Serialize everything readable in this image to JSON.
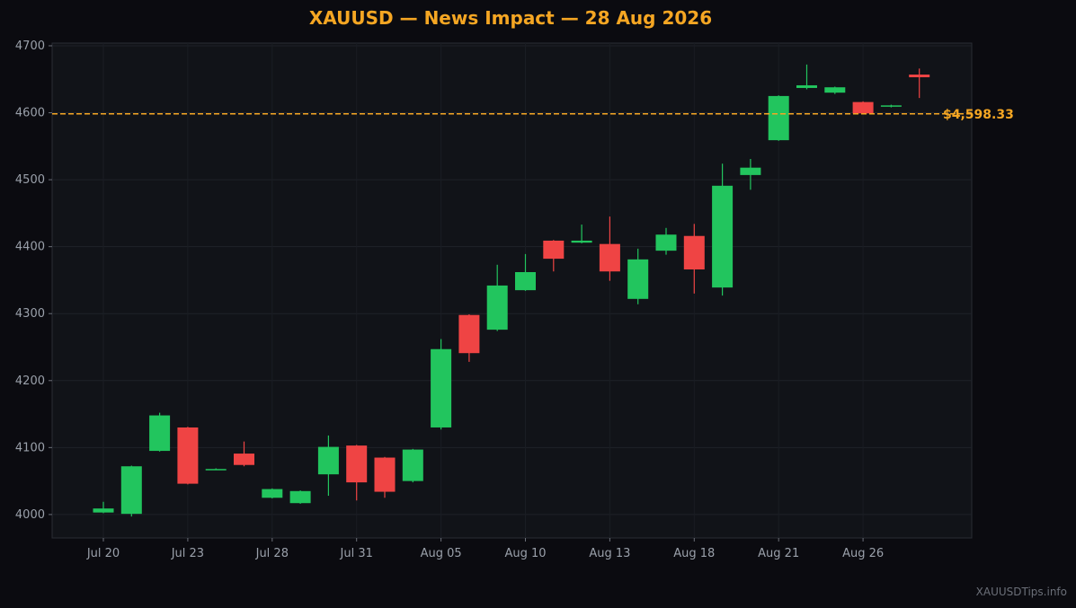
{
  "chart_data": {
    "type": "candlestick",
    "title": "XAUUSD — News Impact — 28 Aug 2026",
    "watermark": "XAUUSDTips.info",
    "categories": [
      "Jul 20",
      null,
      null,
      "Jul 23",
      null,
      null,
      "Jul 28",
      null,
      null,
      "Jul 31",
      null,
      null,
      "Aug 05",
      null,
      null,
      "Aug 10",
      null,
      null,
      "Aug 13",
      null,
      null,
      "Aug 18",
      null,
      null,
      "Aug 21",
      null,
      null,
      "Aug 26",
      null,
      null
    ],
    "open": [
      4003,
      4001,
      4095,
      4130,
      4067,
      4091,
      4025,
      4017,
      4060,
      4103,
      4085,
      4050,
      4130,
      4298,
      4276,
      4335,
      4409,
      4406,
      4404,
      4322,
      4394,
      4416,
      4339,
      4507,
      4559,
      4637,
      4630,
      4616,
      4609,
      4657
    ],
    "high": [
      4019,
      4073,
      4152,
      4131,
      4069,
      4109,
      4039,
      4036,
      4118,
      4104,
      4086,
      4098,
      4262,
      4299,
      4373,
      4389,
      4410,
      4433,
      4445,
      4397,
      4428,
      4434,
      4524,
      4531,
      4626,
      4672,
      4639,
      4617,
      4612,
      4666
    ],
    "low": [
      4002,
      3997,
      4094,
      4045,
      4067,
      4072,
      4024,
      4016,
      4028,
      4021,
      4025,
      4048,
      4127,
      4228,
      4274,
      4334,
      4363,
      4405,
      4349,
      4314,
      4388,
      4330,
      4327,
      4485,
      4558,
      4635,
      4628,
      4598,
      4608,
      4622
    ],
    "close": [
      4009,
      4072,
      4148,
      4046,
      4068,
      4074,
      4038,
      4035,
      4101,
      4048,
      4034,
      4097,
      4247,
      4241,
      4342,
      4362,
      4382,
      4409,
      4363,
      4381,
      4418,
      4366,
      4491,
      4518,
      4625,
      4641,
      4638,
      4599,
      4611,
      4653
    ],
    "up_color": "#22c55e",
    "down_color": "#ef4444",
    "ylim": [
      3965,
      4704
    ],
    "yticks": [
      4000,
      4100,
      4200,
      4300,
      4400,
      4500,
      4600,
      4700
    ],
    "grid": true,
    "ref_line": {
      "value": 4598.33,
      "label": "$4,598.33",
      "color": "#f5a623"
    }
  }
}
